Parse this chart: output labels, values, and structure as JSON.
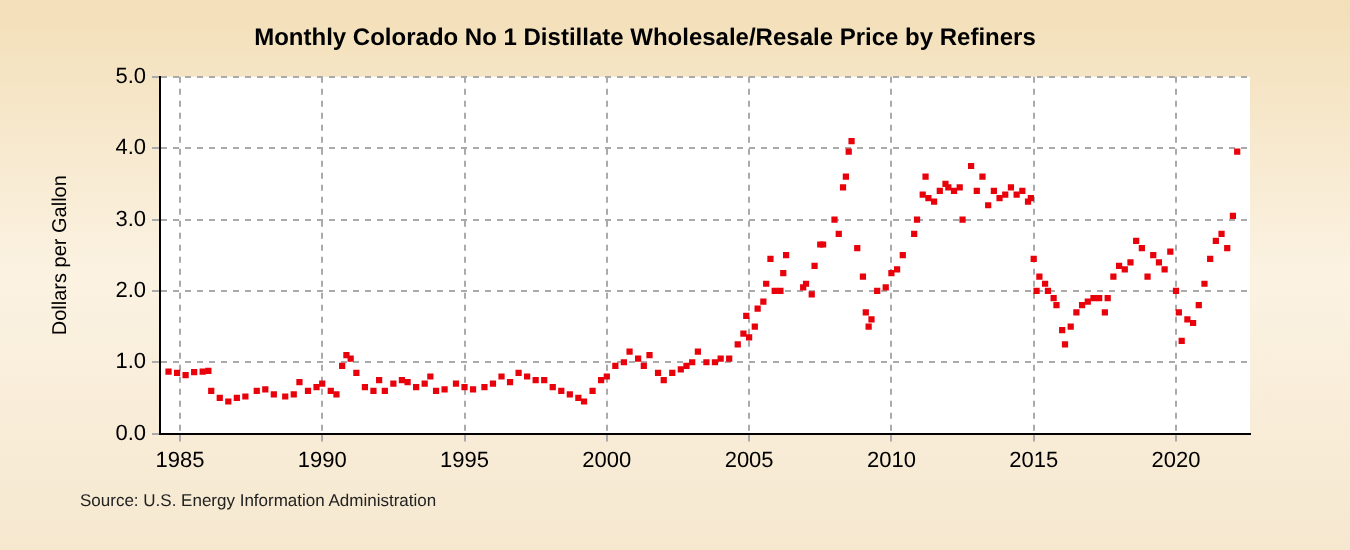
{
  "chart_data": {
    "type": "scatter",
    "title": "Monthly Colorado No 1 Distillate Wholesale/Resale Price by Refiners",
    "ylabel": "Dollars per Gallon",
    "annotations": [
      "Source: U.S. Energy Information Administration"
    ],
    "marker": "square",
    "grid": true,
    "xlim": [
      1984.3,
      2022.6
    ],
    "xticks": [
      1985,
      1990,
      1995,
      2000,
      2005,
      2010,
      2015,
      2020
    ],
    "ylim": [
      0,
      5
    ],
    "yticks": [
      {
        "value": 0,
        "label": "0.0"
      },
      {
        "value": 1,
        "label": "1.0"
      },
      {
        "value": 2,
        "label": "2.0"
      },
      {
        "value": 3,
        "label": "3.0"
      },
      {
        "value": 4,
        "label": "4.0"
      },
      {
        "value": 5,
        "label": "5.0"
      }
    ],
    "series": [
      {
        "color": "#e8000b",
        "x": [
          1984.6,
          1984.9,
          1985.2,
          1985.5,
          1985.8,
          1986.0,
          1986.1,
          1986.4,
          1986.7,
          1987.0,
          1987.3,
          1987.7,
          1988.0,
          1988.3,
          1988.7,
          1989.0,
          1989.2,
          1989.5,
          1989.8,
          1990.0,
          1990.3,
          1990.5,
          1990.7,
          1990.85,
          1991.0,
          1991.2,
          1991.5,
          1991.8,
          1992.0,
          1992.2,
          1992.5,
          1992.8,
          1993.0,
          1993.3,
          1993.6,
          1993.8,
          1994.0,
          1994.3,
          1994.7,
          1995.0,
          1995.3,
          1995.7,
          1996.0,
          1996.3,
          1996.6,
          1996.9,
          1997.2,
          1997.5,
          1997.8,
          1998.1,
          1998.4,
          1998.7,
          1999.0,
          1999.2,
          1999.5,
          1999.8,
          2000.0,
          2000.3,
          2000.6,
          2000.8,
          2001.1,
          2001.3,
          2001.5,
          2001.8,
          2002.0,
          2002.3,
          2002.6,
          2002.8,
          2003.0,
          2003.2,
          2003.5,
          2003.8,
          2004.0,
          2004.3,
          2004.6,
          2004.8,
          2004.9,
          2005.0,
          2005.2,
          2005.3,
          2005.5,
          2005.6,
          2005.75,
          2005.9,
          2006.1,
          2006.2,
          2006.3,
          2006.9,
          2007.0,
          2007.2,
          2007.3,
          2007.5,
          2007.6,
          2008.0,
          2008.15,
          2008.3,
          2008.4,
          2008.5,
          2008.6,
          2008.8,
          2009.0,
          2009.1,
          2009.2,
          2009.3,
          2009.5,
          2009.8,
          2010.0,
          2010.2,
          2010.4,
          2010.8,
          2010.9,
          2011.1,
          2011.2,
          2011.3,
          2011.5,
          2011.7,
          2011.9,
          2012.0,
          2012.2,
          2012.4,
          2012.5,
          2012.8,
          2013.0,
          2013.2,
          2013.4,
          2013.6,
          2013.8,
          2014.0,
          2014.2,
          2014.4,
          2014.6,
          2014.8,
          2014.9,
          2015.0,
          2015.1,
          2015.2,
          2015.4,
          2015.5,
          2015.7,
          2015.8,
          2016.0,
          2016.1,
          2016.3,
          2016.5,
          2016.7,
          2016.9,
          2017.1,
          2017.3,
          2017.5,
          2017.6,
          2017.8,
          2018.0,
          2018.2,
          2018.4,
          2018.6,
          2018.8,
          2019.0,
          2019.2,
          2019.4,
          2019.6,
          2019.8,
          2020.0,
          2020.1,
          2020.2,
          2020.4,
          2020.6,
          2020.8,
          2021.0,
          2021.2,
          2021.4,
          2021.6,
          2021.8,
          2022.0,
          2022.15
        ],
        "values": [
          0.87,
          0.85,
          0.82,
          0.86,
          0.87,
          0.88,
          0.6,
          0.5,
          0.45,
          0.5,
          0.52,
          0.6,
          0.62,
          0.55,
          0.52,
          0.55,
          0.72,
          0.6,
          0.65,
          0.7,
          0.6,
          0.55,
          0.95,
          1.1,
          1.05,
          0.85,
          0.65,
          0.6,
          0.75,
          0.6,
          0.7,
          0.75,
          0.72,
          0.65,
          0.7,
          0.8,
          0.6,
          0.62,
          0.7,
          0.65,
          0.62,
          0.65,
          0.7,
          0.8,
          0.72,
          0.85,
          0.8,
          0.75,
          0.75,
          0.65,
          0.6,
          0.55,
          0.5,
          0.45,
          0.6,
          0.75,
          0.8,
          0.95,
          1.0,
          1.15,
          1.05,
          0.95,
          1.1,
          0.85,
          0.75,
          0.85,
          0.9,
          0.95,
          1.0,
          1.15,
          1.0,
          1.0,
          1.05,
          1.05,
          1.25,
          1.4,
          1.65,
          1.35,
          1.5,
          1.75,
          1.85,
          2.1,
          2.45,
          2.0,
          2.0,
          2.25,
          2.5,
          2.05,
          2.1,
          1.95,
          2.35,
          2.65,
          2.65,
          3.0,
          2.8,
          3.45,
          3.6,
          3.95,
          4.1,
          2.6,
          2.2,
          1.7,
          1.5,
          1.6,
          2.0,
          2.05,
          2.25,
          2.3,
          2.5,
          2.8,
          3.0,
          3.35,
          3.6,
          3.3,
          3.25,
          3.4,
          3.5,
          3.45,
          3.4,
          3.45,
          3.0,
          3.75,
          3.4,
          3.6,
          3.2,
          3.4,
          3.3,
          3.35,
          3.45,
          3.35,
          3.4,
          3.25,
          3.3,
          2.45,
          2.0,
          2.2,
          2.1,
          2.0,
          1.9,
          1.8,
          1.45,
          1.25,
          1.5,
          1.7,
          1.8,
          1.85,
          1.9,
          1.9,
          1.7,
          1.9,
          2.2,
          2.35,
          2.3,
          2.4,
          2.7,
          2.6,
          2.2,
          2.5,
          2.4,
          2.3,
          2.55,
          2.0,
          1.7,
          1.3,
          1.6,
          1.55,
          1.8,
          2.1,
          2.45,
          2.7,
          2.8,
          2.6,
          3.05,
          3.95
        ]
      }
    ]
  }
}
